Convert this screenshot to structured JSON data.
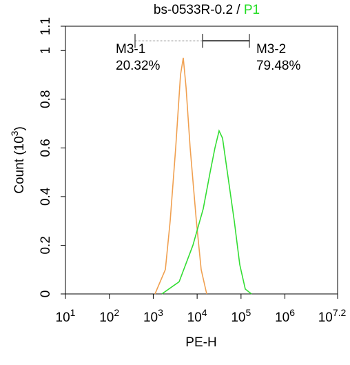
{
  "chart_data": {
    "type": "line",
    "title": "bs-0533R-0.2 /",
    "title_gate": "P1",
    "title_gate_color": "#22dd22",
    "xlabel": "PE-H",
    "ylabel": "Count (10^3)",
    "xscale": "log",
    "xlim": [
      10,
      15848931.92
    ],
    "xticks": [
      {
        "value": 10,
        "label": "10^1"
      },
      {
        "value": 100,
        "label": "10^2"
      },
      {
        "value": 1000,
        "label": "10^3"
      },
      {
        "value": 10000,
        "label": "10^4"
      },
      {
        "value": 100000,
        "label": "10^5"
      },
      {
        "value": 1000000,
        "label": "10^6"
      },
      {
        "value": 15848931.92,
        "label": "10^7.2"
      }
    ],
    "ylim": [
      0,
      1.1
    ],
    "yticks": [
      0,
      0.2,
      0.4,
      0.6,
      0.8,
      1,
      1.1
    ],
    "series": [
      {
        "color": "#f0a050",
        "x": [
          1096,
          1888,
          2432,
          3246,
          4180,
          4830,
          5585,
          6934,
          9594,
          12360,
          16520
        ],
        "values": [
          0,
          0.1,
          0.3,
          0.6,
          0.9,
          0.97,
          0.85,
          0.6,
          0.3,
          0.1,
          0
        ]
      },
      {
        "color": "#33dd33",
        "x": [
          1574,
          3890,
          8017,
          13770,
          19770,
          25460,
          31620,
          37900,
          48830,
          70130,
          93610,
          125000,
          173000
        ],
        "values": [
          0,
          0.05,
          0.2,
          0.35,
          0.5,
          0.6,
          0.67,
          0.64,
          0.5,
          0.3,
          0.12,
          0.02,
          0
        ]
      }
    ],
    "gates": {
      "names": [
        "M3-1",
        "M3-2"
      ],
      "values": [
        20.32,
        79.48
      ],
      "value_labels": [
        "20.32%",
        "79.48%"
      ],
      "ranges": [
        [
          385,
          13300
        ],
        [
          13300,
          155000
        ]
      ],
      "level": 1.04
    }
  }
}
